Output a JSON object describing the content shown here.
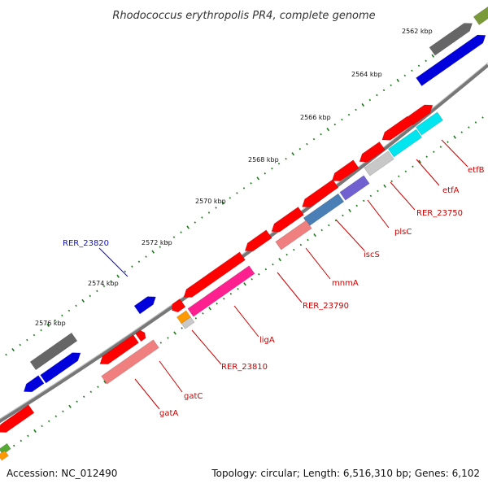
{
  "title": "Rhodococcus erythropolis PR4, complete genome",
  "footer": {
    "accession": "Accession: NC_012490",
    "summary": "Topology: circular; Length: 6,516,310 bp; Genes: 6,102"
  },
  "scale_labels": [
    "2562 kbp",
    "2564 kbp",
    "2566 kbp",
    "2568 kbp",
    "2570 kbp",
    "2572 kbp",
    "2574 kbp",
    "2576 kbp"
  ],
  "gene_labels": {
    "etfB": "etfB",
    "etfA": "etfA",
    "rer23750": "RER_23750",
    "plsC": "plsC",
    "iscS": "iscS",
    "mnmA": "mnmA",
    "rer23790": "RER_23790",
    "ligA": "ligA",
    "rer23810": "RER_23810",
    "gatC": "gatC",
    "gatA": "gatA",
    "rer23820": "RER_23820"
  },
  "colors": {
    "backbone": "#888888",
    "tick": "#1a7a1a",
    "red": "#ff0000",
    "blue": "#0000dd",
    "gray": "#666666",
    "olive": "#7a9a3a",
    "cyan": "#00e5ee",
    "pink": "#f08080",
    "magenta": "#ff2090",
    "purple": "#7060d0",
    "steel": "#4a7fb5",
    "lightgray": "#c8c8c8",
    "orange": "#ff9900",
    "label_red": "#cc0000",
    "label_blue": "#1010c0"
  }
}
